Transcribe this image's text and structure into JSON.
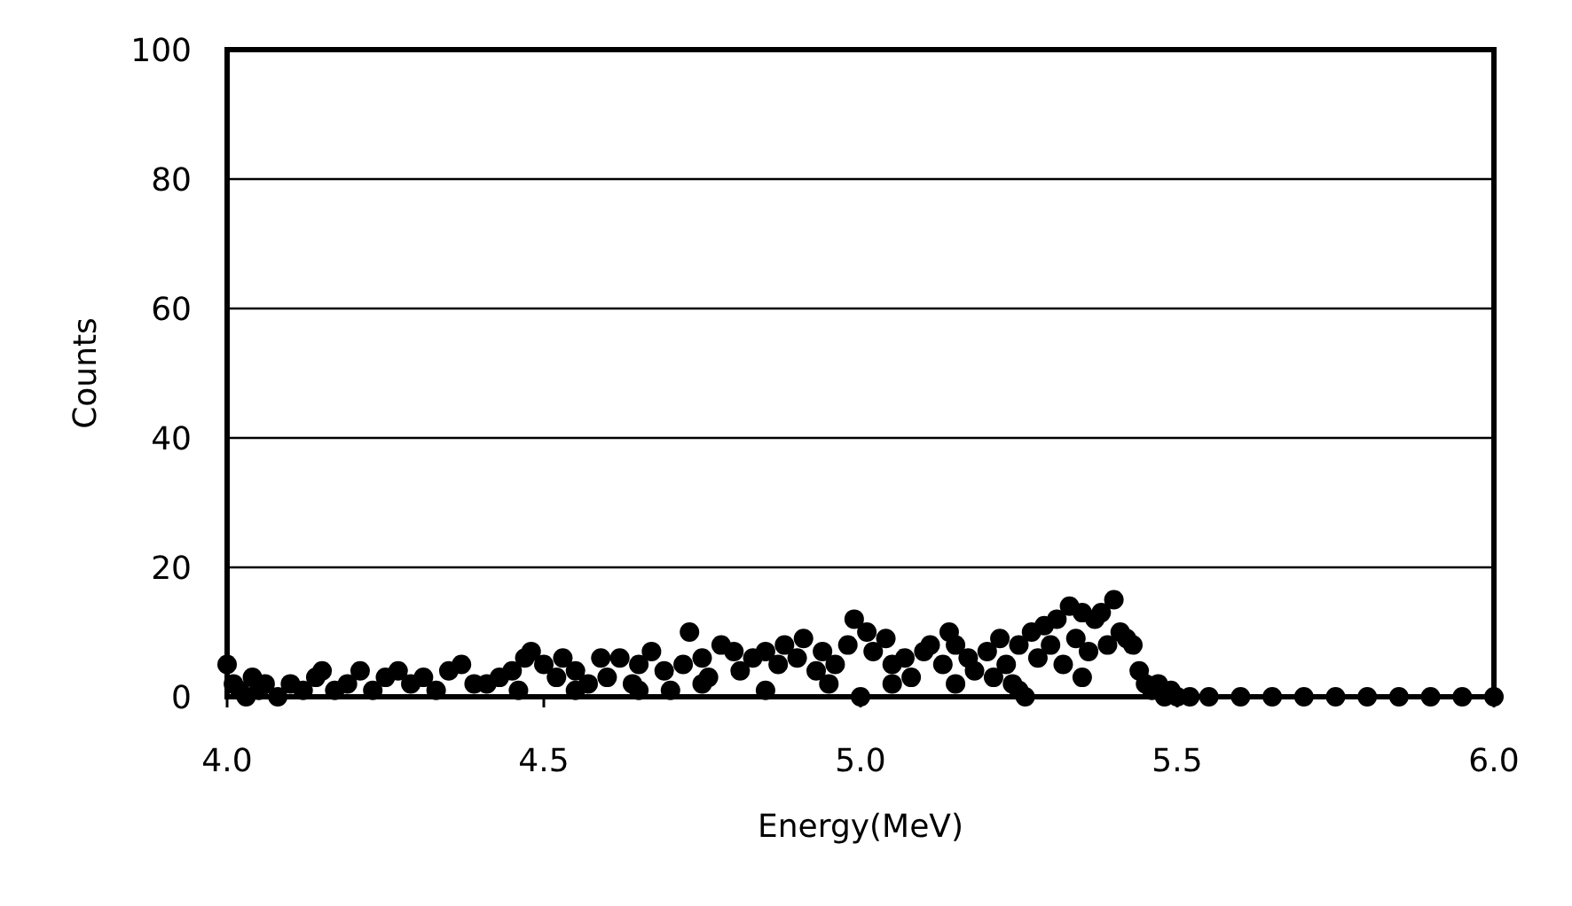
{
  "chart_data": {
    "type": "scatter",
    "xlabel": "Energy(MeV)",
    "ylabel": "Counts",
    "x": [
      4.0,
      4.01,
      4.02,
      4.03,
      4.04,
      4.05,
      4.06,
      4.08,
      4.1,
      4.12,
      4.14,
      4.15,
      4.17,
      4.19,
      4.21,
      4.23,
      4.25,
      4.27,
      4.29,
      4.31,
      4.33,
      4.35,
      4.37,
      4.39,
      4.41,
      4.43,
      4.45,
      4.46,
      4.47,
      4.48,
      4.5,
      4.52,
      4.53,
      4.55,
      4.57,
      4.59,
      4.6,
      4.62,
      4.64,
      4.65,
      4.67,
      4.69,
      4.7,
      4.72,
      4.73,
      4.75,
      4.76,
      4.78,
      4.8,
      4.81,
      4.83,
      4.85,
      4.87,
      4.88,
      4.9,
      4.91,
      4.93,
      4.94,
      4.96,
      4.98,
      4.99,
      5.0,
      5.01,
      5.02,
      5.04,
      5.05,
      5.07,
      5.08,
      5.1,
      5.11,
      5.13,
      5.14,
      5.15,
      5.17,
      5.18,
      5.2,
      5.21,
      5.22,
      5.23,
      5.24,
      5.25,
      5.26,
      5.27,
      5.28,
      5.29,
      5.3,
      5.31,
      5.32,
      5.33,
      5.34,
      5.35,
      5.36,
      5.37,
      5.38,
      5.39,
      5.4,
      5.41,
      5.42,
      5.43,
      5.44,
      5.45,
      5.46,
      5.47,
      5.48,
      5.49,
      5.5,
      4.55,
      4.65,
      4.75,
      4.85,
      4.95,
      5.05,
      5.15,
      5.25,
      5.35,
      5.52,
      5.55,
      5.6,
      5.65,
      5.7,
      5.75,
      5.8,
      5.85,
      5.9,
      5.95,
      6.0
    ],
    "values": [
      5,
      2,
      1,
      0,
      3,
      1,
      2,
      0,
      2,
      1,
      3,
      4,
      1,
      2,
      4,
      1,
      3,
      4,
      2,
      3,
      1,
      4,
      5,
      2,
      2,
      3,
      4,
      1,
      6,
      7,
      5,
      3,
      6,
      4,
      2,
      6,
      3,
      6,
      2,
      5,
      7,
      4,
      1,
      5,
      10,
      6,
      3,
      8,
      7,
      4,
      6,
      7,
      5,
      8,
      6,
      9,
      4,
      7,
      5,
      8,
      12,
      0,
      10,
      7,
      9,
      5,
      6,
      3,
      7,
      8,
      5,
      10,
      8,
      6,
      4,
      7,
      3,
      9,
      5,
      2,
      8,
      0,
      10,
      6,
      11,
      8,
      12,
      5,
      14,
      9,
      13,
      7,
      12,
      13,
      8,
      15,
      10,
      9,
      8,
      4,
      2,
      1,
      2,
      0,
      1,
      0,
      1,
      1,
      2,
      1,
      2,
      2,
      2,
      1,
      3,
      0,
      0,
      0,
      0,
      0,
      0,
      0,
      0,
      0,
      0,
      0
    ],
    "color": "#000000",
    "marker": "circle",
    "xlim": [
      4,
      6
    ],
    "xticks": [
      {
        "value": 4,
        "label": "4.0"
      },
      4.5,
      {
        "value": 5,
        "label": "5.0"
      },
      5.5,
      {
        "value": 6,
        "label": "6.0"
      }
    ],
    "ylim": [
      0,
      100
    ],
    "yticks": [
      0,
      20,
      40,
      60,
      80,
      100
    ],
    "grid": "y"
  }
}
